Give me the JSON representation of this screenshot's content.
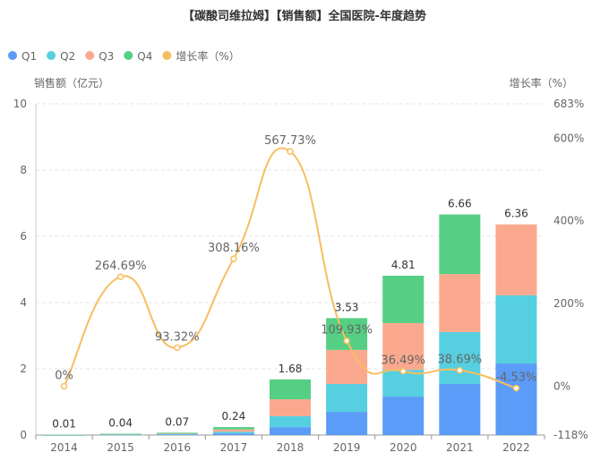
{
  "chart_data": {
    "type": "bar",
    "title": "【碳酸司维拉姆】【销售额】全国医院-年度趋势",
    "categories": [
      "2014",
      "2015",
      "2016",
      "2017",
      "2018",
      "2019",
      "2020",
      "2021",
      "2022"
    ],
    "series": [
      {
        "name": "Q1",
        "type": "bar",
        "color": "#5b9cf8",
        "values": [
          0.0025,
          0.01,
          0.02,
          0.05,
          0.24,
          0.7,
          1.16,
          1.54,
          2.16
        ]
      },
      {
        "name": "Q2",
        "type": "bar",
        "color": "#56cfe0",
        "values": [
          0.0025,
          0.01,
          0.02,
          0.05,
          0.33,
          0.84,
          0.81,
          1.57,
          2.06
        ]
      },
      {
        "name": "Q3",
        "type": "bar",
        "color": "#fba98e",
        "values": [
          0.0025,
          0.01,
          0.015,
          0.07,
          0.51,
          1.03,
          1.41,
          1.75,
          2.14
        ]
      },
      {
        "name": "Q4",
        "type": "bar",
        "color": "#55cf83",
        "values": [
          0.0025,
          0.01,
          0.015,
          0.07,
          0.6,
          0.96,
          1.43,
          1.8,
          0
        ]
      }
    ],
    "totals": [
      "0.01",
      "0.04",
      "0.07",
      "0.24",
      "1.68",
      "3.53",
      "4.81",
      "6.66",
      "6.36"
    ],
    "growth": {
      "name": "增长率（%）",
      "color": "#f7be5f",
      "values": [
        0,
        264.69,
        93.32,
        308.16,
        567.73,
        109.93,
        36.49,
        38.69,
        -4.53
      ],
      "labels": [
        "0%",
        "264.69%",
        "93.32%",
        "308.16%",
        "567.73%",
        "109.93%",
        "36.49%",
        "38.69%",
        "-4.53%"
      ]
    },
    "ylabel": "销售额（亿元）",
    "y2label": "增长率（%）",
    "ylim": [
      0,
      10
    ],
    "yticks": [
      "0",
      "2",
      "4",
      "6",
      "8",
      "10"
    ],
    "y2lim": [
      -118,
      683
    ],
    "y2ticks": [
      {
        "v": -118,
        "t": "-118%"
      },
      {
        "v": 0,
        "t": "0%"
      },
      {
        "v": 200,
        "t": "200%"
      },
      {
        "v": 400,
        "t": "400%"
      },
      {
        "v": 600,
        "t": "600%"
      },
      {
        "v": 683,
        "t": "683%"
      }
    ],
    "legend_position": "top-left",
    "grid": true
  },
  "legend": [
    "Q1",
    "Q2",
    "Q3",
    "Q4",
    "增长率（%）"
  ]
}
